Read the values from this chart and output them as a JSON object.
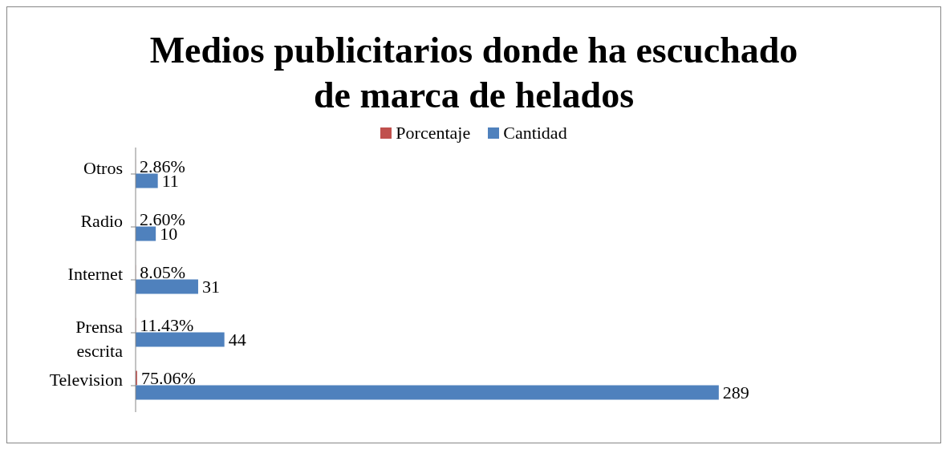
{
  "chart_data": {
    "type": "bar",
    "orientation": "horizontal",
    "title": "Medios publicitarios donde ha escuchado de marca de helados",
    "categories": [
      "Otros",
      "Radio",
      "Internet",
      "Prensa escrita",
      "Television"
    ],
    "series": [
      {
        "name": "Porcentaje",
        "color": "#c0504d",
        "values": [
          0.0286,
          0.026,
          0.0805,
          0.1143,
          0.7506
        ],
        "value_labels": [
          "2.86%",
          "2.60%",
          "8.05%",
          "11.43%",
          "75.06%"
        ]
      },
      {
        "name": "Cantidad",
        "color": "#4f81bd",
        "values": [
          11,
          10,
          31,
          44,
          289
        ],
        "value_labels": [
          "11",
          "10",
          "31",
          "44",
          "289"
        ]
      }
    ],
    "legend": "top"
  }
}
